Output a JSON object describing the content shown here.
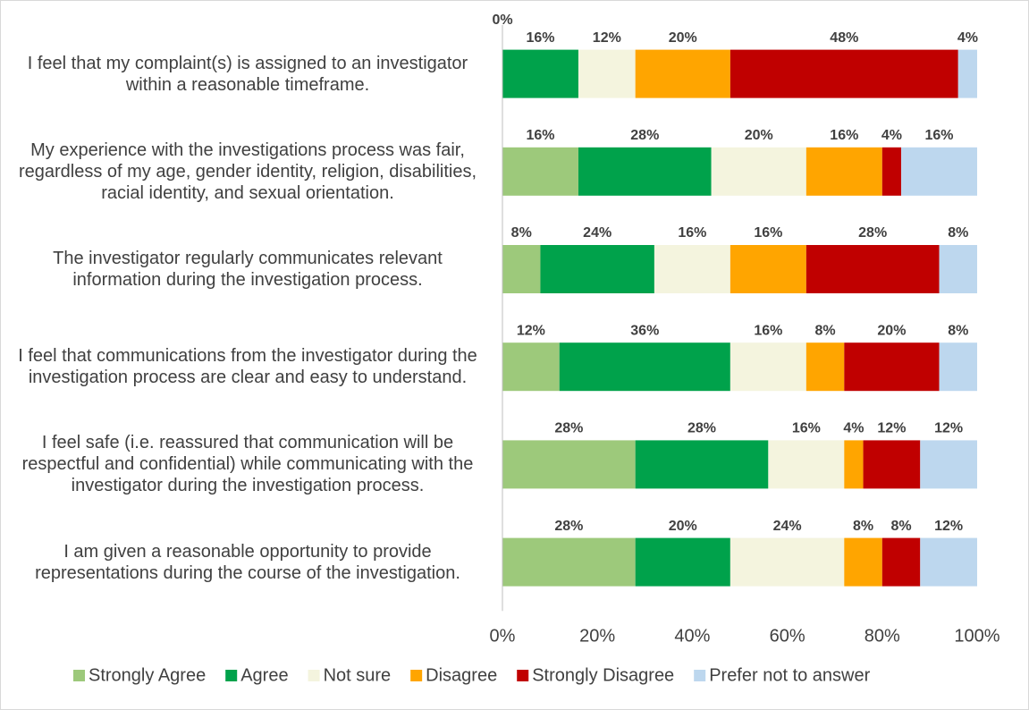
{
  "chart_data": {
    "type": "stacked-bar-horizontal",
    "categories": [
      "I feel that my complaint(s) is assigned to an investigator within a reasonable timeframe.",
      "My experience with the investigations process was fair, regardless of my age, gender identity, religion, disabilities, racial identity, and sexual orientation.",
      "The investigator regularly communicates relevant information during the investigation process.",
      "I feel that communications from the investigator during the investigation process are clear and easy to understand.",
      "I feel safe (i.e. reassured that communication will be respectful and confidential) while communicating with the investigator during the investigation process.",
      "I am given a reasonable opportunity to provide representations during the course of the investigation."
    ],
    "series": [
      {
        "name": "Strongly Agree",
        "color": "#9dc97b",
        "values": [
          0,
          16,
          8,
          12,
          28,
          28
        ],
        "value_labels": [
          "0%",
          "16%",
          "8%",
          "12%",
          "28%",
          "28%"
        ]
      },
      {
        "name": "Agree",
        "color": "#00a24b",
        "values": [
          16,
          28,
          24,
          36,
          28,
          20
        ],
        "value_labels": [
          "16%",
          "28%",
          "24%",
          "36%",
          "28%",
          "20%"
        ]
      },
      {
        "name": "Not sure",
        "color": "#f4f4de",
        "values": [
          12,
          20,
          16,
          16,
          16,
          24
        ],
        "value_labels": [
          "12%",
          "20%",
          "16%",
          "16%",
          "16%",
          "24%"
        ]
      },
      {
        "name": "Disagree",
        "color": "#ffa500",
        "values": [
          20,
          16,
          16,
          8,
          4,
          8
        ],
        "value_labels": [
          "20%",
          "16%",
          "16%",
          "8%",
          "4%",
          "8%"
        ]
      },
      {
        "name": "Strongly Disagree",
        "color": "#c00000",
        "values": [
          48,
          4,
          28,
          20,
          12,
          8
        ],
        "value_labels": [
          "48%",
          "4%",
          "28%",
          "20%",
          "12%",
          "8%"
        ]
      },
      {
        "name": "Prefer not to answer",
        "color": "#bdd7ee",
        "values": [
          4,
          16,
          8,
          8,
          12,
          12
        ],
        "value_labels": [
          "4%",
          "16%",
          "8%",
          "8%",
          "12%",
          "12%"
        ]
      }
    ],
    "xlim": [
      0,
      100
    ],
    "xticks": [
      {
        "value": 0,
        "label": "0%"
      },
      {
        "value": 20,
        "label": "20%"
      },
      {
        "value": 40,
        "label": "40%"
      },
      {
        "value": 60,
        "label": "60%"
      },
      {
        "value": 80,
        "label": "80%"
      },
      {
        "value": 100,
        "label": "100%"
      }
    ],
    "legend": "bottom"
  }
}
